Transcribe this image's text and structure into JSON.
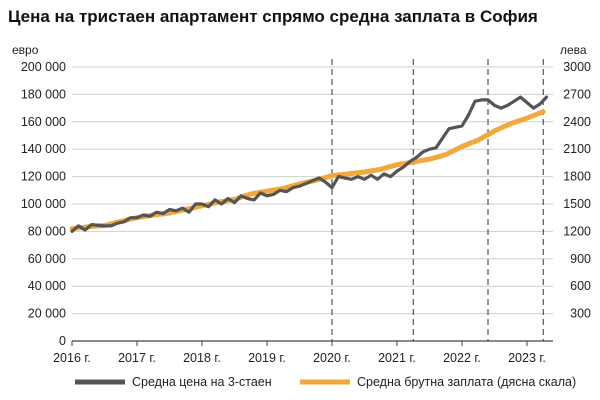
{
  "chart_data": {
    "type": "line",
    "title": "Цена на тристаен апартамент спрямо средна заплата в София",
    "y_left_label": "евро",
    "y_right_label": "лева",
    "y_left_ticks": [
      "0",
      "20 000",
      "40 000",
      "60 000",
      "80 000",
      "100 000",
      "120 000",
      "140 000",
      "160 000",
      "180 000",
      "200 000"
    ],
    "y_right_ticks": [
      "300",
      "600",
      "900",
      "1200",
      "1500",
      "1800",
      "2100",
      "2400",
      "2700",
      "3000"
    ],
    "x_ticks": [
      "2016 г.",
      "2017 г.",
      "2018 г.",
      "2019 г.",
      "2020 г.",
      "2021 г.",
      "2022 г.",
      "2023 г."
    ],
    "x_tick_years": [
      2016,
      2017,
      2018,
      2019,
      2020,
      2021,
      2022,
      2023
    ],
    "xlim": [
      2016.0,
      2023.4
    ],
    "ylim_left": [
      0,
      200000
    ],
    "ylim_right": [
      0,
      3000
    ],
    "grid": "horizontal",
    "dashed_markers": [
      2020.0,
      2021.25,
      2022.4,
      2023.25
    ],
    "series": [
      {
        "name": "Средна цена на 3-стаен",
        "axis": "left",
        "color": "#555555",
        "x": [
          2016.0,
          2016.1,
          2016.2,
          2016.3,
          2016.5,
          2016.6,
          2016.7,
          2016.8,
          2016.9,
          2017.0,
          2017.1,
          2017.2,
          2017.3,
          2017.4,
          2017.5,
          2017.6,
          2017.7,
          2017.8,
          2017.9,
          2018.0,
          2018.1,
          2018.2,
          2018.3,
          2018.4,
          2018.5,
          2018.6,
          2018.7,
          2018.8,
          2018.9,
          2019.0,
          2019.1,
          2019.2,
          2019.3,
          2019.4,
          2019.5,
          2019.6,
          2019.7,
          2019.8,
          2019.9,
          2020.0,
          2020.1,
          2020.2,
          2020.3,
          2020.4,
          2020.5,
          2020.6,
          2020.7,
          2020.8,
          2020.9,
          2021.0,
          2021.1,
          2021.2,
          2021.3,
          2021.4,
          2021.5,
          2021.6,
          2021.7,
          2021.8,
          2021.9,
          2022.0,
          2022.1,
          2022.2,
          2022.3,
          2022.4,
          2022.5,
          2022.6,
          2022.7,
          2022.8,
          2022.9,
          2023.0,
          2023.1,
          2023.2,
          2023.3
        ],
        "values": [
          80000,
          84000,
          81000,
          85000,
          84000,
          84000,
          86000,
          87000,
          90000,
          90000,
          92000,
          91000,
          94000,
          93000,
          96000,
          95000,
          97000,
          94000,
          100000,
          100000,
          98000,
          103000,
          100000,
          104000,
          101000,
          106000,
          104000,
          103000,
          108000,
          106000,
          107000,
          110000,
          109000,
          112000,
          113000,
          115000,
          117000,
          119000,
          116000,
          112000,
          120000,
          119000,
          118000,
          120000,
          118000,
          121000,
          118000,
          122000,
          120000,
          124000,
          127000,
          131000,
          134000,
          138000,
          140000,
          141000,
          148000,
          155000,
          156000,
          157000,
          165000,
          175000,
          176000,
          176000,
          172000,
          170000,
          172000,
          175000,
          178000,
          174000,
          170000,
          173000,
          178000
        ]
      },
      {
        "name": "Средна брутна заплата (дясна скала)",
        "axis": "right",
        "color": "#F2A93B",
        "x": [
          2016.0,
          2016.25,
          2016.5,
          2016.75,
          2017.0,
          2017.25,
          2017.5,
          2017.75,
          2018.0,
          2018.25,
          2018.5,
          2018.75,
          2019.0,
          2019.25,
          2019.5,
          2019.75,
          2020.0,
          2020.25,
          2020.5,
          2020.75,
          2021.0,
          2021.25,
          2021.5,
          2021.75,
          2022.0,
          2022.25,
          2022.5,
          2022.75,
          2023.0,
          2023.25
        ],
        "values": [
          1230,
          1250,
          1265,
          1310,
          1350,
          1380,
          1400,
          1440,
          1480,
          1520,
          1550,
          1610,
          1640,
          1670,
          1720,
          1760,
          1810,
          1830,
          1850,
          1880,
          1930,
          1960,
          1990,
          2040,
          2130,
          2200,
          2300,
          2380,
          2440,
          2510
        ]
      }
    ]
  }
}
